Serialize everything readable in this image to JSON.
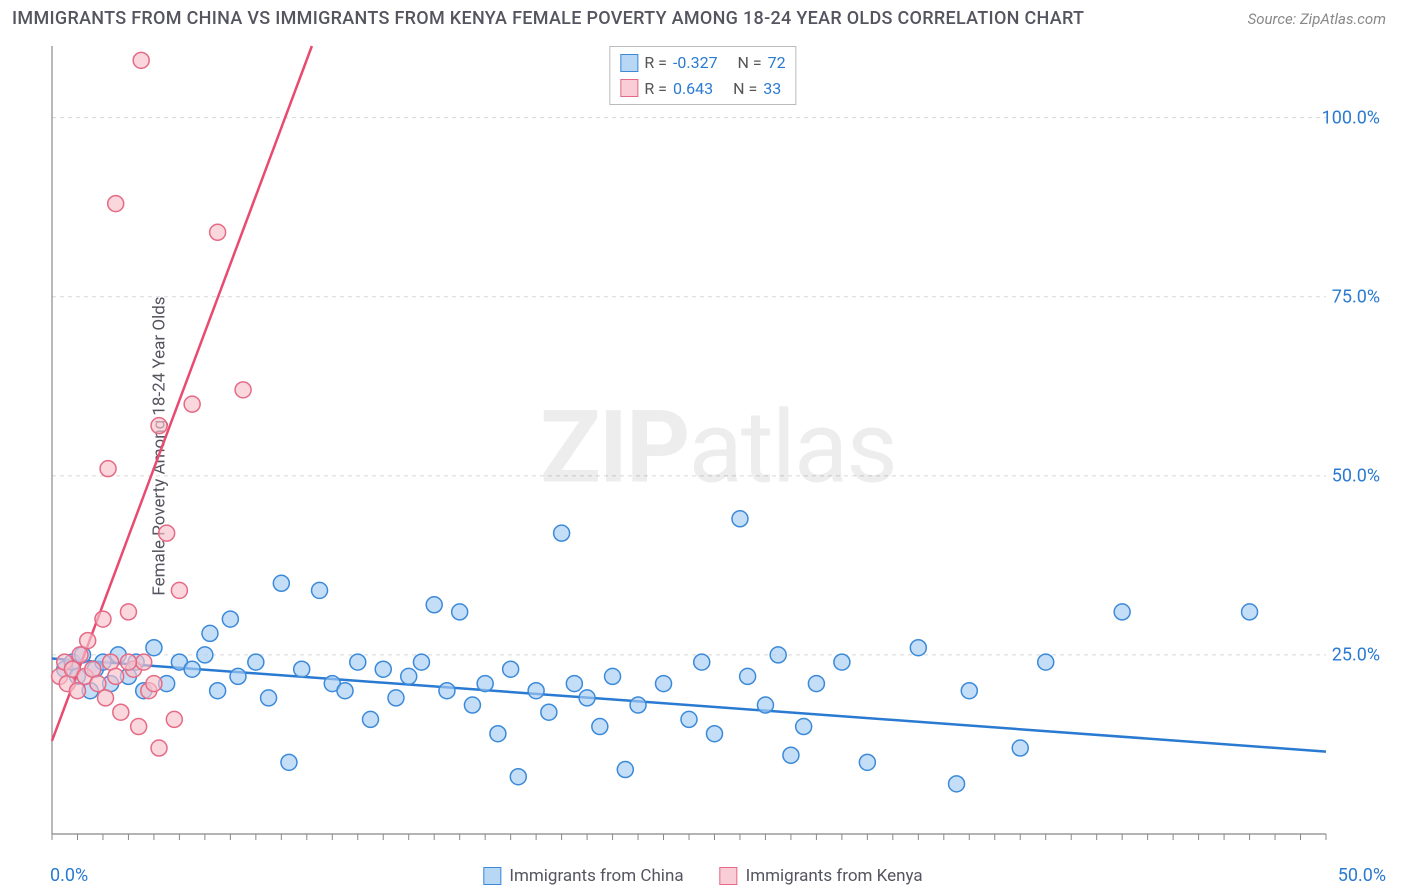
{
  "title": "IMMIGRANTS FROM CHINA VS IMMIGRANTS FROM KENYA FEMALE POVERTY AMONG 18-24 YEAR OLDS CORRELATION CHART",
  "source": "Source: ZipAtlas.com",
  "y_axis_label": "Female Poverty Among 18-24 Year Olds",
  "watermark_bold": "ZIP",
  "watermark_light": "atlas",
  "chart": {
    "type": "scatter",
    "background_color": "#ffffff",
    "grid_color": "#d7d7d7",
    "axis_color": "#888888",
    "tick_label_color": "#2a7ad1",
    "xlim": [
      0,
      50
    ],
    "ylim": [
      0,
      110
    ],
    "x_ticks": [
      0,
      50
    ],
    "x_tick_labels": [
      "0.0%",
      "50.0%"
    ],
    "y_ticks": [
      25,
      50,
      75,
      100
    ],
    "y_tick_labels": [
      "25.0%",
      "50.0%",
      "75.0%",
      "100.0%"
    ],
    "x_minor_tick_step": 1,
    "y_minor_gridlines": [
      25,
      50,
      75,
      100
    ],
    "marker_radius": 8,
    "marker_stroke_width": 1.5,
    "line_width": 2.5,
    "series": [
      {
        "name": "Immigrants from China",
        "color_fill": "#a6cdf2",
        "color_stroke": "#3b8ad9",
        "line_color": "#2a7ad1",
        "R": -0.327,
        "N": 72,
        "trend": {
          "x1": 0,
          "y1": 24.5,
          "x2": 50,
          "y2": 11.5
        },
        "points": [
          [
            0.5,
            23
          ],
          [
            0.8,
            24
          ],
          [
            1.0,
            22
          ],
          [
            1.2,
            25
          ],
          [
            1.5,
            20
          ],
          [
            1.7,
            23
          ],
          [
            2.0,
            24
          ],
          [
            2.3,
            21
          ],
          [
            2.6,
            25
          ],
          [
            3.0,
            22
          ],
          [
            3.3,
            24
          ],
          [
            3.6,
            20
          ],
          [
            4.0,
            26
          ],
          [
            4.5,
            21
          ],
          [
            5.0,
            24
          ],
          [
            5.5,
            23
          ],
          [
            6.0,
            25
          ],
          [
            6.2,
            28
          ],
          [
            6.5,
            20
          ],
          [
            7.0,
            30
          ],
          [
            7.3,
            22
          ],
          [
            8.0,
            24
          ],
          [
            8.5,
            19
          ],
          [
            9.0,
            35
          ],
          [
            9.3,
            10
          ],
          [
            9.8,
            23
          ],
          [
            10.5,
            34
          ],
          [
            11.0,
            21
          ],
          [
            11.5,
            20
          ],
          [
            12.0,
            24
          ],
          [
            12.5,
            16
          ],
          [
            13.0,
            23
          ],
          [
            13.5,
            19
          ],
          [
            14.0,
            22
          ],
          [
            14.5,
            24
          ],
          [
            15.0,
            32
          ],
          [
            15.5,
            20
          ],
          [
            16.0,
            31
          ],
          [
            16.5,
            18
          ],
          [
            17.0,
            21
          ],
          [
            17.5,
            14
          ],
          [
            18.0,
            23
          ],
          [
            18.3,
            8
          ],
          [
            19.0,
            20
          ],
          [
            19.5,
            17
          ],
          [
            20.0,
            42
          ],
          [
            20.5,
            21
          ],
          [
            21.0,
            19
          ],
          [
            21.5,
            15
          ],
          [
            22.0,
            22
          ],
          [
            22.5,
            9
          ],
          [
            23.0,
            18
          ],
          [
            24.0,
            21
          ],
          [
            25.0,
            16
          ],
          [
            25.5,
            24
          ],
          [
            26.0,
            14
          ],
          [
            27.0,
            44
          ],
          [
            27.3,
            22
          ],
          [
            28.0,
            18
          ],
          [
            28.5,
            25
          ],
          [
            29.0,
            11
          ],
          [
            29.5,
            15
          ],
          [
            30.0,
            21
          ],
          [
            31.0,
            24
          ],
          [
            32.0,
            10
          ],
          [
            34.0,
            26
          ],
          [
            35.5,
            7
          ],
          [
            36.0,
            20
          ],
          [
            38.0,
            12
          ],
          [
            39.0,
            24
          ],
          [
            42.0,
            31
          ],
          [
            47.0,
            31
          ]
        ]
      },
      {
        "name": "Immigrants from Kenya",
        "color_fill": "#f7c1cb",
        "color_stroke": "#e66a85",
        "line_color": "#e94a6f",
        "R": 0.643,
        "N": 33,
        "trend": {
          "x1": 0,
          "y1": 13,
          "x2": 10.2,
          "y2": 110
        },
        "points": [
          [
            0.3,
            22
          ],
          [
            0.5,
            24
          ],
          [
            0.6,
            21
          ],
          [
            0.8,
            23
          ],
          [
            1.0,
            20
          ],
          [
            1.1,
            25
          ],
          [
            1.3,
            22
          ],
          [
            1.4,
            27
          ],
          [
            1.6,
            23
          ],
          [
            1.8,
            21
          ],
          [
            2.0,
            30
          ],
          [
            2.1,
            19
          ],
          [
            2.3,
            24
          ],
          [
            2.5,
            22
          ],
          [
            2.7,
            17
          ],
          [
            3.0,
            31
          ],
          [
            3.2,
            23
          ],
          [
            3.4,
            15
          ],
          [
            3.6,
            24
          ],
          [
            3.8,
            20
          ],
          [
            4.0,
            21
          ],
          [
            4.2,
            12
          ],
          [
            4.5,
            42
          ],
          [
            4.8,
            16
          ],
          [
            2.2,
            51
          ],
          [
            2.5,
            88
          ],
          [
            3.5,
            108
          ],
          [
            4.2,
            57
          ],
          [
            5.0,
            34
          ],
          [
            5.5,
            60
          ],
          [
            6.5,
            84
          ],
          [
            7.5,
            62
          ],
          [
            3.0,
            24
          ]
        ]
      }
    ]
  },
  "legend_top": [
    {
      "swatch": "blue",
      "r_label": "R = ",
      "r_value": "-0.327",
      "n_label": "N = ",
      "n_value": "72"
    },
    {
      "swatch": "pink",
      "r_label": "R = ",
      "r_value": "0.643",
      "n_label": "N = ",
      "n_value": "33"
    }
  ],
  "legend_bottom": [
    {
      "swatch": "blue",
      "label": "Immigrants from China"
    },
    {
      "swatch": "pink",
      "label": "Immigrants from Kenya"
    }
  ]
}
